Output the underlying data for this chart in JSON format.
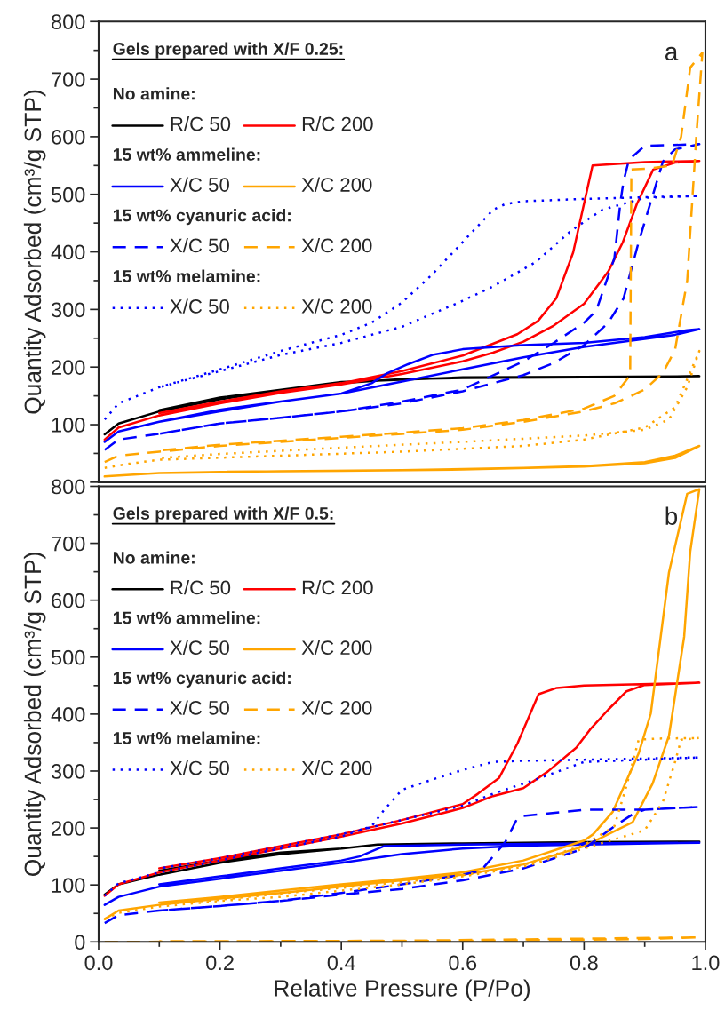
{
  "chart_data": [
    {
      "type": "line",
      "ylabel": "Quantity Adsorbed (cm³/g STP)",
      "legend_title": "Gels prepared with X/F 0.25:",
      "annotations": [
        "a",
        "No amine:",
        "15 wt% ammeline:",
        "15 wt% cyanuric acid:",
        "15 wt% melamine:"
      ],
      "legend": "top left",
      "tick_labels": "y",
      "xlim": [
        0,
        1
      ],
      "ylim": [
        0,
        800
      ],
      "yticks": [
        {
          "value": 0,
          "label": null
        },
        100,
        200,
        300,
        400,
        500,
        600,
        700,
        800
      ],
      "series": [
        {
          "name": "R/C 50",
          "color": "#000000",
          "line_style": "solid",
          "x": [
            0.01,
            0.033,
            0.1,
            0.2,
            0.3,
            0.4,
            0.5,
            0.6,
            0.8,
            0.99,
            0.8,
            0.6,
            0.4,
            0.2,
            0.1
          ],
          "values": [
            83,
            102,
            123,
            144,
            159,
            172,
            179,
            181,
            182,
            184,
            183,
            182,
            174,
            147,
            125
          ]
        },
        {
          "name": "R/C 200",
          "color": "#ff0000",
          "line_style": "solid",
          "x": [
            0.01,
            0.033,
            0.1,
            0.2,
            0.3,
            0.4,
            0.5,
            0.6,
            0.65,
            0.7,
            0.75,
            0.8,
            0.84,
            0.864,
            0.887,
            0.914,
            0.95,
            0.99,
            0.9,
            0.814,
            0.782,
            0.754,
            0.724,
            0.69,
            0.6,
            0.5,
            0.4,
            0.3,
            0.2,
            0.1
          ],
          "values": [
            74,
            95,
            116,
            137,
            155,
            170,
            188,
            210,
            225,
            244,
            272,
            310,
            366,
            417,
            483,
            543,
            555,
            558,
            556,
            550,
            399,
            319,
            280,
            257,
            220,
            193,
            172,
            158,
            140,
            120
          ]
        },
        {
          "name": "X/C 50",
          "color": "#0000ff",
          "line_style": "solid",
          "x": [
            0.01,
            0.033,
            0.1,
            0.2,
            0.3,
            0.4,
            0.5,
            0.6,
            0.7,
            0.8,
            0.9,
            0.95,
            0.99,
            0.97,
            0.9,
            0.8,
            0.7,
            0.6,
            0.55,
            0.51,
            0.475,
            0.45,
            0.4,
            0.3,
            0.2,
            0.1
          ],
          "values": [
            70,
            88,
            105,
            123,
            140,
            154,
            175,
            196,
            217,
            235,
            249,
            256,
            266,
            264,
            252,
            242,
            238,
            231,
            221,
            205,
            189,
            172,
            154,
            140,
            126,
            105
          ]
        },
        {
          "name": "X/C 200",
          "color": "#ffa500",
          "line_style": "solid",
          "x": [
            0.01,
            0.1,
            0.3,
            0.5,
            0.7,
            0.8,
            0.9,
            0.95,
            0.99,
            0.95,
            0.9,
            0.8,
            0.6,
            0.4,
            0.2,
            0.1
          ],
          "values": [
            10,
            16,
            19,
            21,
            25,
            28,
            35,
            46,
            63,
            42,
            33,
            27,
            22,
            20,
            18,
            16
          ]
        },
        {
          "name": "X/C 50",
          "color": "#0000ff",
          "line_style": "dashed",
          "x": [
            0.01,
            0.033,
            0.1,
            0.2,
            0.3,
            0.4,
            0.5,
            0.6,
            0.7,
            0.75,
            0.8,
            0.84,
            0.865,
            0.89,
            0.91,
            0.93,
            0.95,
            0.99,
            0.9,
            0.874,
            0.865,
            0.86,
            0.85,
            0.82,
            0.8,
            0.75,
            0.7,
            0.6,
            0.5,
            0.4,
            0.3,
            0.2,
            0.1
          ],
          "values": [
            56,
            74,
            84,
            102,
            112,
            123,
            137,
            158,
            186,
            207,
            238,
            277,
            319,
            417,
            487,
            557,
            578,
            587,
            584,
            560,
            522,
            487,
            389,
            298,
            277,
            242,
            210,
            161,
            140,
            123,
            112,
            102,
            84
          ]
        },
        {
          "name": "X/C 200",
          "color": "#ffa500",
          "line_style": "dashed",
          "x": [
            0.01,
            0.033,
            0.1,
            0.2,
            0.3,
            0.4,
            0.5,
            0.6,
            0.7,
            0.8,
            0.85,
            0.88,
            0.9,
            0.93,
            0.95,
            0.97,
            0.985,
            0.995,
            0.975,
            0.96,
            0.945,
            0.91,
            0.878,
            0.876,
            0.85,
            0.8,
            0.7,
            0.6,
            0.5,
            0.4,
            0.3,
            0.2,
            0.1
          ],
          "values": [
            35,
            46,
            53,
            63,
            70,
            77,
            84,
            91,
            105,
            123,
            137,
            151,
            161,
            190,
            230,
            350,
            600,
            746,
            720,
            600,
            550,
            545,
            543,
            186,
            150,
            128,
            108,
            94,
            86,
            79,
            72,
            65,
            55
          ]
        },
        {
          "name": "X/C 50",
          "color": "#0000ff",
          "line_style": "dotted",
          "x": [
            0.01,
            0.033,
            0.1,
            0.2,
            0.3,
            0.4,
            0.45,
            0.5,
            0.55,
            0.6,
            0.65,
            0.67,
            0.7,
            0.8,
            0.9,
            0.99,
            0.9,
            0.83,
            0.78,
            0.72,
            0.65,
            0.6,
            0.5,
            0.4,
            0.3,
            0.2,
            0.1
          ],
          "values": [
            109,
            137,
            165,
            196,
            228,
            256,
            277,
            312,
            361,
            417,
            473,
            483,
            488,
            492,
            495,
            497,
            494,
            473,
            438,
            382,
            340,
            315,
            270,
            242,
            221,
            193,
            165
          ]
        },
        {
          "name": "X/C 200",
          "color": "#ffa500",
          "line_style": "dotted",
          "x": [
            0.01,
            0.05,
            0.1,
            0.3,
            0.5,
            0.7,
            0.8,
            0.9,
            0.95,
            0.99,
            0.97,
            0.94,
            0.9,
            0.8,
            0.6,
            0.4,
            0.2,
            0.1
          ],
          "values": [
            25,
            32,
            39,
            46,
            53,
            63,
            74,
            95,
            130,
            228,
            165,
            109,
            91,
            81,
            70,
            60,
            49,
            42
          ]
        }
      ]
    },
    {
      "type": "line",
      "xlabel": "Relative Pressure (P/Po)",
      "ylabel": "Quantity Adsorbed (cm³/g STP)",
      "legend_title": "Gels prepared with X/F 0.5:",
      "annotations": [
        "b",
        "No amine:",
        "15 wt% ammeline:",
        "15 wt% cyanuric acid:",
        "15 wt% melamine:"
      ],
      "legend": "top left",
      "xlim": [
        0,
        1
      ],
      "xticks": [
        {
          "value": 0,
          "label": "0.0"
        },
        0.2,
        0.4,
        0.6,
        0.8,
        {
          "value": 1,
          "label": "1.0"
        }
      ],
      "ylim": [
        0,
        800
      ],
      "yticks": [
        0,
        100,
        200,
        300,
        400,
        500,
        600,
        700,
        800
      ],
      "series": [
        {
          "name": "R/C 50",
          "color": "#000000",
          "line_style": "solid",
          "x": [
            0.01,
            0.033,
            0.1,
            0.2,
            0.3,
            0.4,
            0.46,
            0.6,
            0.8,
            0.99,
            0.8,
            0.6,
            0.46,
            0.4,
            0.3,
            0.2,
            0.1
          ],
          "values": [
            83,
            101,
            118,
            139,
            154,
            164,
            171,
            173,
            175,
            176,
            175,
            173,
            171,
            164,
            157,
            143,
            125
          ]
        },
        {
          "name": "R/C 200",
          "color": "#ff0000",
          "line_style": "solid",
          "x": [
            0.01,
            0.033,
            0.1,
            0.2,
            0.3,
            0.4,
            0.5,
            0.6,
            0.65,
            0.7,
            0.74,
            0.787,
            0.81,
            0.84,
            0.87,
            0.9,
            0.99,
            0.8,
            0.755,
            0.725,
            0.69,
            0.66,
            0.625,
            0.6,
            0.5,
            0.4,
            0.3,
            0.2,
            0.1
          ],
          "values": [
            81,
            101,
            122,
            143,
            164,
            185,
            208,
            235,
            256,
            270,
            299,
            341,
            373,
            408,
            440,
            451,
            455,
            450,
            446,
            435,
            348,
            288,
            260,
            242,
            214,
            189,
            168,
            147,
            129
          ]
        },
        {
          "name": "X/C 50",
          "color": "#0000ff",
          "line_style": "solid",
          "x": [
            0.01,
            0.033,
            0.1,
            0.2,
            0.3,
            0.4,
            0.5,
            0.6,
            0.7,
            0.8,
            0.99,
            0.8,
            0.6,
            0.47,
            0.43,
            0.4,
            0.3,
            0.2,
            0.1
          ],
          "values": [
            65,
            79,
            97,
            111,
            125,
            139,
            154,
            164,
            169,
            171,
            174,
            173,
            171,
            168,
            150,
            143,
            129,
            115,
            101
          ]
        },
        {
          "name": "X/C 200",
          "color": "#ffa500",
          "line_style": "solid",
          "x": [
            0.01,
            0.033,
            0.1,
            0.2,
            0.3,
            0.4,
            0.5,
            0.6,
            0.7,
            0.8,
            0.88,
            0.913,
            0.94,
            0.965,
            0.975,
            0.99,
            0.97,
            0.94,
            0.91,
            0.89,
            0.847,
            0.815,
            0.8,
            0.7,
            0.6,
            0.5,
            0.4,
            0.3,
            0.2,
            0.1
          ],
          "values": [
            40,
            55,
            65,
            76,
            86,
            97,
            108,
            118,
            136,
            168,
            210,
            278,
            362,
            536,
            685,
            795,
            787,
            649,
            401,
            331,
            228,
            189,
            178,
            143,
            122,
            111,
            101,
            90,
            79,
            69
          ]
        },
        {
          "name": "X/C 50",
          "color": "#0000ff",
          "line_style": "dashed",
          "x": [
            0.01,
            0.033,
            0.1,
            0.2,
            0.3,
            0.4,
            0.5,
            0.6,
            0.7,
            0.8,
            0.85,
            0.88,
            0.9,
            0.99,
            0.9,
            0.8,
            0.7,
            0.69,
            0.67,
            0.63,
            0.6,
            0.5,
            0.4,
            0.3,
            0.2,
            0.1
          ],
          "values": [
            33,
            47,
            55,
            63,
            72,
            83,
            93,
            108,
            129,
            164,
            203,
            224,
            232,
            237,
            232,
            232,
            221,
            217,
            175,
            125,
            118,
            101,
            86,
            72,
            63,
            55
          ]
        },
        {
          "name": "X/C 200",
          "color": "#ffa500",
          "line_style": "dashed",
          "x": [
            0.01,
            0.3,
            0.6,
            0.8,
            0.9,
            0.99,
            0.5,
            0.1
          ],
          "values": [
            0,
            1,
            2,
            4,
            5,
            8,
            2,
            1
          ]
        },
        {
          "name": "X/C 50",
          "color": "#0000ff",
          "line_style": "dotted",
          "x": [
            0.01,
            0.033,
            0.1,
            0.2,
            0.3,
            0.4,
            0.45,
            0.47,
            0.5,
            0.55,
            0.6,
            0.65,
            0.7,
            0.8,
            0.99,
            0.9,
            0.8,
            0.72,
            0.65,
            0.6,
            0.5,
            0.4,
            0.3,
            0.2,
            0.1
          ],
          "values": [
            81,
            103,
            122,
            143,
            164,
            185,
            203,
            231,
            267,
            285,
            302,
            316,
            318,
            320,
            324,
            320,
            316,
            285,
            260,
            239,
            214,
            189,
            168,
            147,
            129
          ]
        },
        {
          "name": "X/C 200",
          "color": "#ffa500",
          "line_style": "dotted",
          "x": [
            0.01,
            0.033,
            0.1,
            0.2,
            0.3,
            0.4,
            0.5,
            0.6,
            0.7,
            0.8,
            0.85,
            0.9,
            0.93,
            0.95,
            0.96,
            0.99,
            0.92,
            0.89,
            0.87,
            0.85,
            0.8,
            0.7,
            0.6,
            0.5,
            0.4,
            0.3,
            0.2,
            0.1
          ],
          "values": [
            40,
            51,
            62,
            72,
            79,
            90,
            101,
            115,
            132,
            164,
            180,
            196,
            246,
            316,
            355,
            358,
            357,
            355,
            274,
            203,
            170,
            135,
            117,
            105,
            95,
            85,
            74,
            66
          ]
        }
      ]
    }
  ]
}
